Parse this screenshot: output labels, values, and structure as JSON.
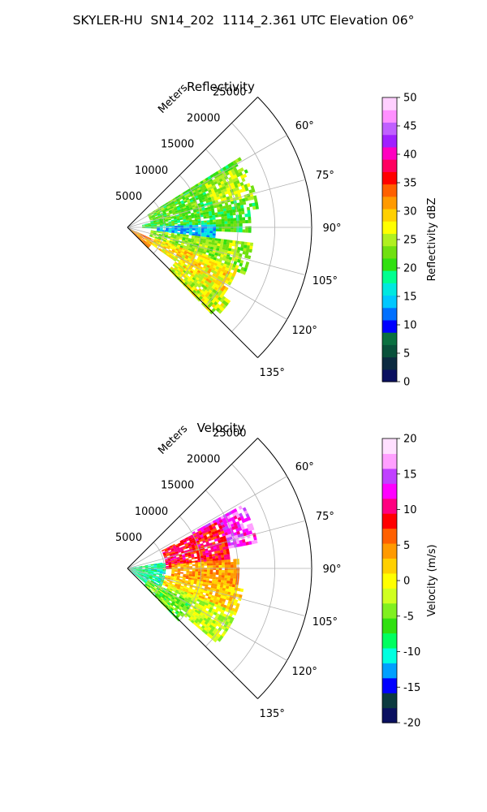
{
  "title": "SKYLER-HU  SN14_202  1114_2.361 UTC Elevation 06°",
  "chart_data": [
    {
      "type": "polar_sector",
      "title": "Reflectivity",
      "range_label": "Meters",
      "r_ticks": [
        5000,
        10000,
        15000,
        20000,
        25000
      ],
      "r_lim": [
        0,
        25000
      ],
      "theta_ticks": [
        60,
        75,
        90,
        105,
        120,
        135
      ],
      "theta_lim_deg": [
        45,
        135
      ],
      "colorbar": {
        "label": "Reflectivity dBZ",
        "min": 0,
        "max": 50,
        "ticks": [
          0,
          5,
          10,
          15,
          20,
          25,
          30,
          35,
          40,
          45,
          50
        ],
        "colors": [
          "#0a1060",
          "#0c2a40",
          "#08503a",
          "#0a7040",
          "#0000ff",
          "#0070ff",
          "#00c8ff",
          "#00e8e0",
          "#00ff90",
          "#30e010",
          "#70e010",
          "#b0f020",
          "#ffff00",
          "#ffd000",
          "#ff9a00",
          "#ff6000",
          "#ff0000",
          "#ff0060",
          "#ff00c0",
          "#a020ff",
          "#c060ff",
          "#ff90ff",
          "#ffd0ff"
        ]
      },
      "regions": [
        {
          "theta": [
            58,
            82
          ],
          "r": [
            3000,
            18000
          ],
          "value": 22
        },
        {
          "theta": [
            60,
            75
          ],
          "r": [
            12000,
            17500
          ],
          "value": 25
        },
        {
          "theta": [
            78,
            92
          ],
          "r": [
            2000,
            16500
          ],
          "value": 21
        },
        {
          "theta": [
            88,
            100
          ],
          "r": [
            4000,
            12000
          ],
          "value": 14
        },
        {
          "theta": [
            96,
            112
          ],
          "r": [
            3000,
            17000
          ],
          "value": 24
        },
        {
          "theta": [
            110,
            125
          ],
          "r": [
            4000,
            16000
          ],
          "value": 28
        },
        {
          "theta": [
            125,
            135
          ],
          "r": [
            8000,
            17000
          ],
          "value": 26
        },
        {
          "theta": [
            115,
            135
          ],
          "r": [
            0,
            4000
          ],
          "value": 32
        }
      ]
    },
    {
      "type": "polar_sector",
      "title": "Velocity",
      "range_label": "Meters",
      "r_ticks": [
        5000,
        10000,
        15000,
        20000,
        25000
      ],
      "r_lim": [
        0,
        25000
      ],
      "theta_ticks": [
        60,
        75,
        90,
        105,
        120,
        135
      ],
      "theta_lim_deg": [
        45,
        135
      ],
      "colorbar": {
        "label": "Velocity (m/s)",
        "min": -20,
        "max": 20,
        "ticks": [
          -20,
          -15,
          -10,
          -5,
          0,
          5,
          10,
          15,
          20
        ],
        "colors": [
          "#0a1060",
          "#0c3a40",
          "#0000ff",
          "#00a0ff",
          "#00ffe0",
          "#00ff60",
          "#30e010",
          "#80f020",
          "#d0ff20",
          "#ffff00",
          "#ffd000",
          "#ff9a00",
          "#ff6000",
          "#ff0000",
          "#ff0080",
          "#ff00ff",
          "#c040ff",
          "#ffa0ff",
          "#ffe0ff"
        ]
      },
      "regions": [
        {
          "theta": [
            60,
            78
          ],
          "r": [
            10000,
            18000
          ],
          "value": 14
        },
        {
          "theta": [
            62,
            90
          ],
          "r": [
            5000,
            14000
          ],
          "value": 9
        },
        {
          "theta": [
            85,
            100
          ],
          "r": [
            6000,
            15000
          ],
          "value": 4
        },
        {
          "theta": [
            100,
            115
          ],
          "r": [
            5000,
            16000
          ],
          "value": 2
        },
        {
          "theta": [
            112,
            130
          ],
          "r": [
            6000,
            16000
          ],
          "value": -2
        },
        {
          "theta": [
            80,
            130
          ],
          "r": [
            0,
            5000
          ],
          "value": -9
        },
        {
          "theta": [
            118,
            135
          ],
          "r": [
            3000,
            10000
          ],
          "value": -5
        }
      ]
    }
  ]
}
